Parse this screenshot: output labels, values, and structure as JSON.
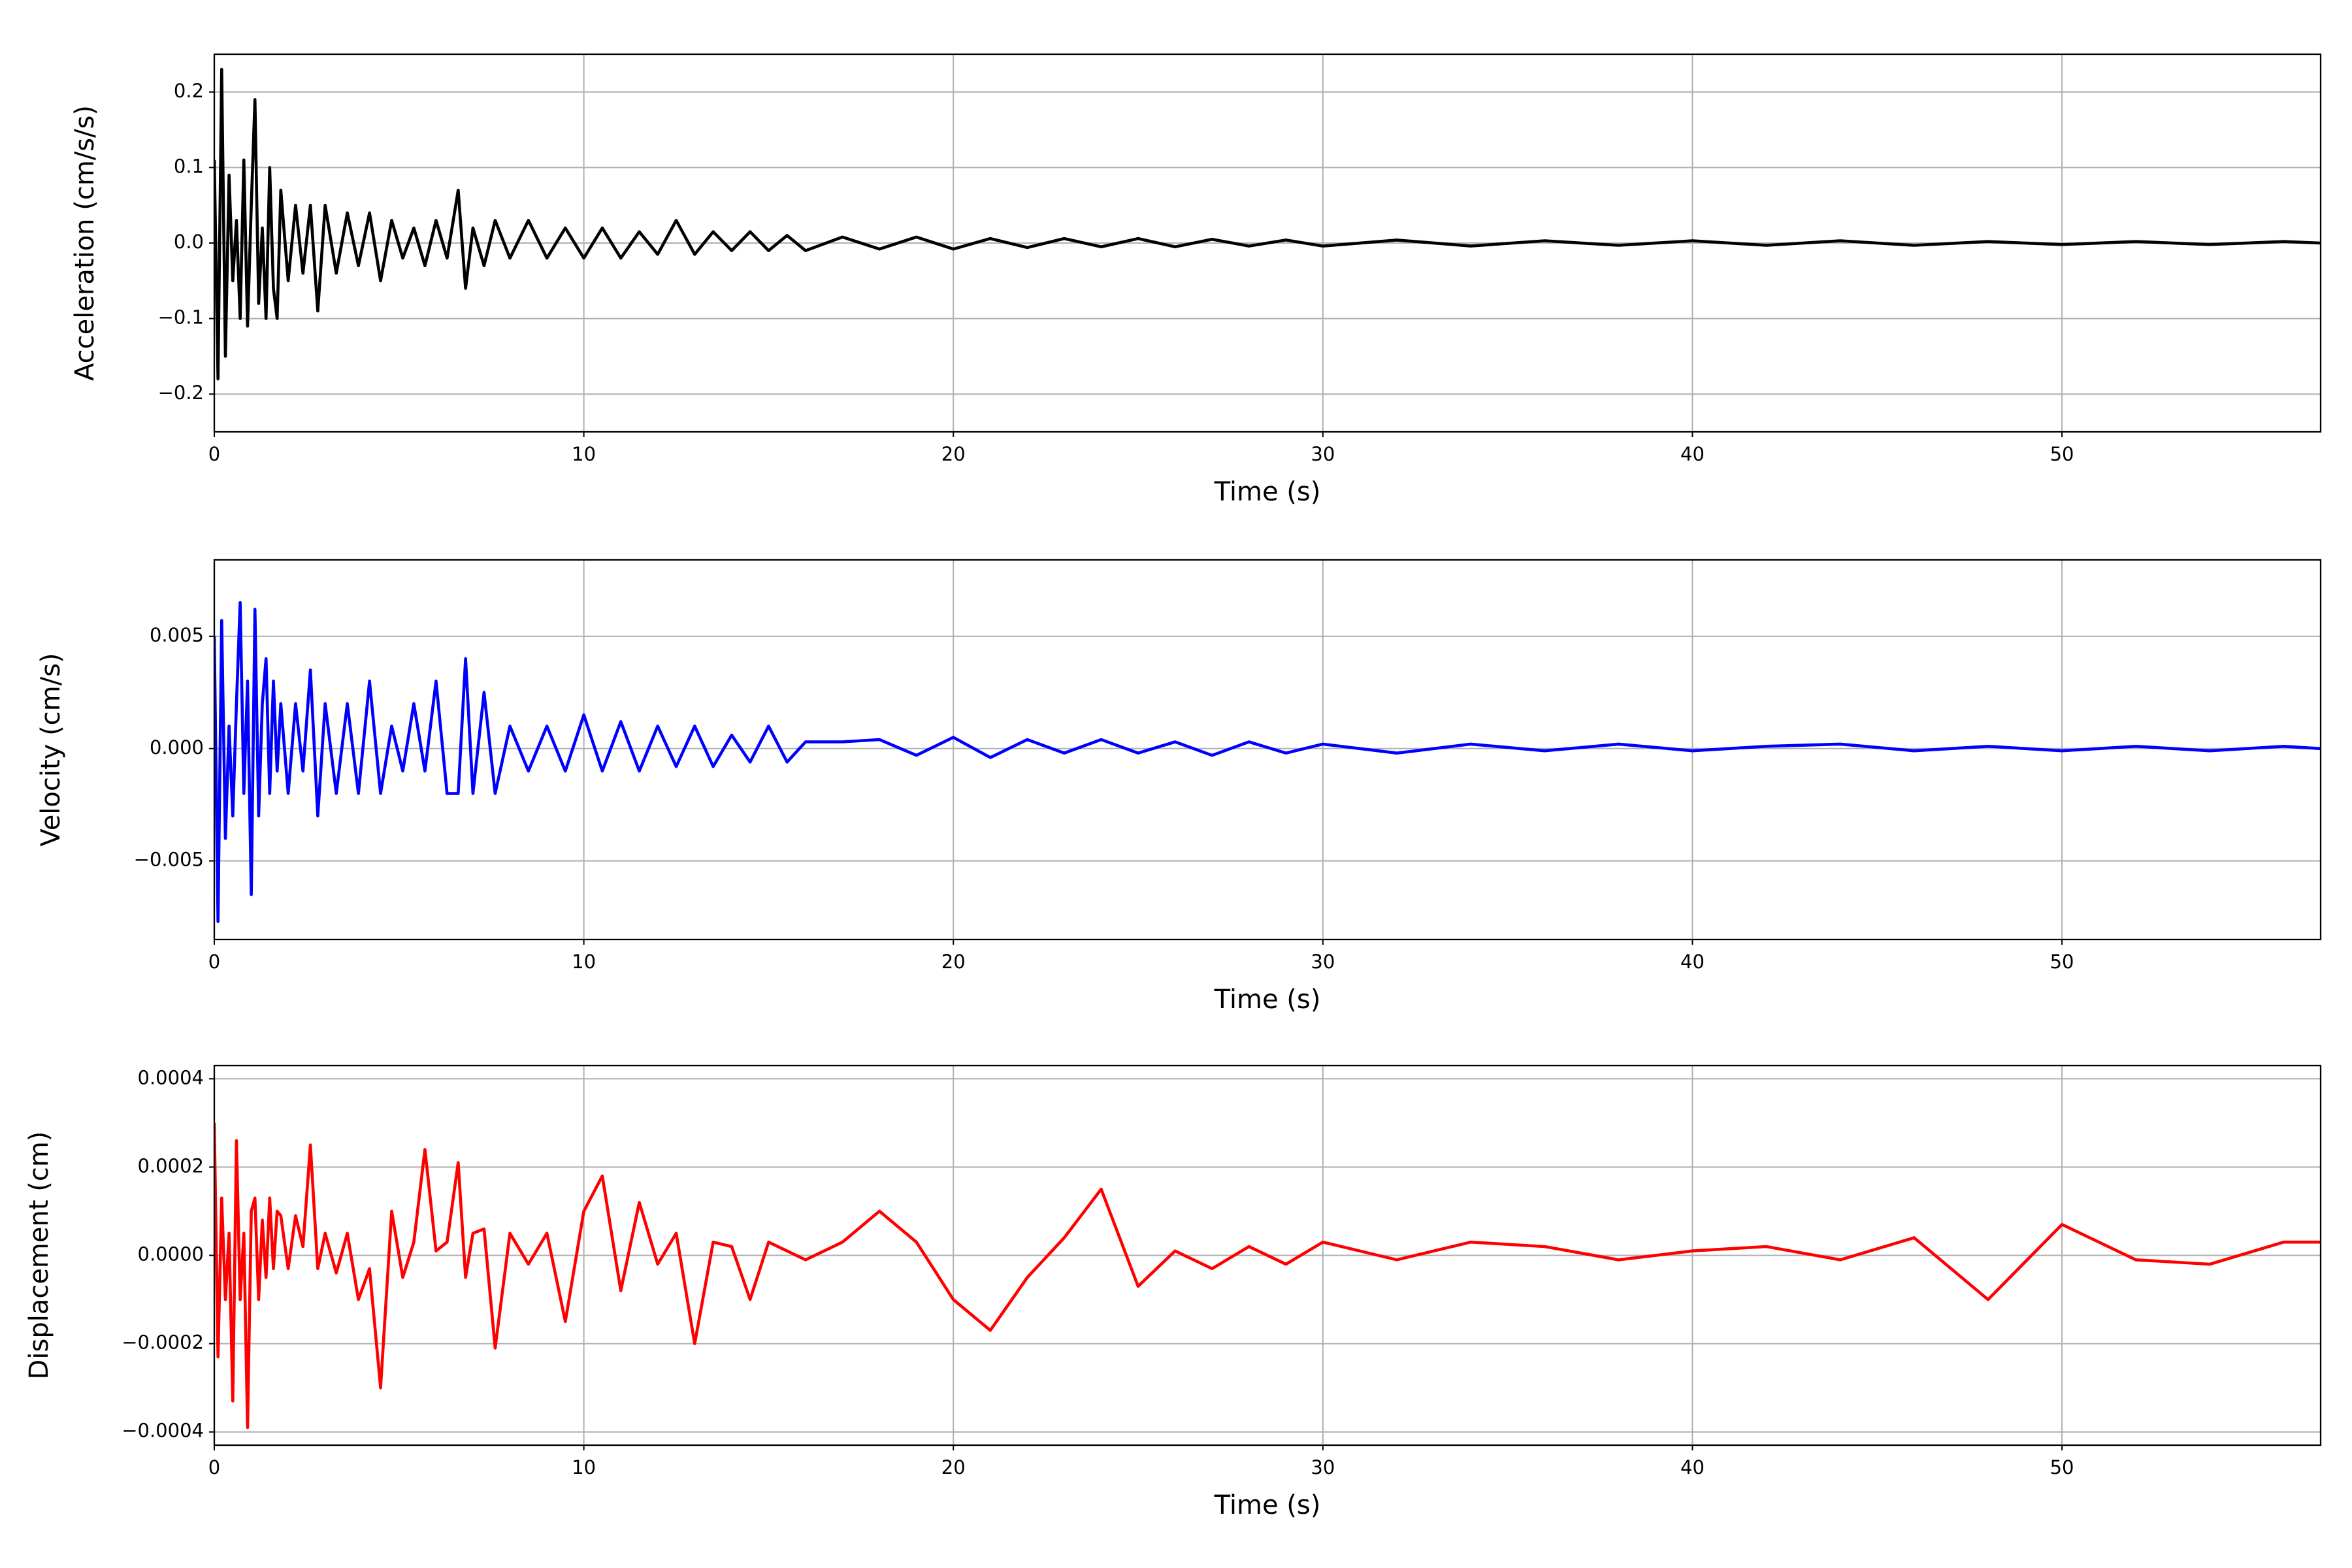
{
  "chart_data": [
    {
      "type": "line",
      "xlabel": "Time (s)",
      "ylabel": "Acceleration (cm/s/s)",
      "grid": true,
      "xlim": [
        0,
        57
      ],
      "xticks": [
        0,
        10,
        20,
        30,
        40,
        50
      ],
      "ylim": [
        -0.25,
        0.25
      ],
      "yticks": [
        {
          "value": -0.2,
          "label": "−0.2"
        },
        {
          "value": -0.1,
          "label": "−0.1"
        },
        {
          "value": 0,
          "label": "0.0"
        },
        0.1,
        0.2
      ],
      "x": [
        0,
        0.1,
        0.2,
        0.3,
        0.4,
        0.5,
        0.6,
        0.7,
        0.8,
        0.9,
        1.0,
        1.1,
        1.2,
        1.3,
        1.4,
        1.5,
        1.6,
        1.7,
        1.8,
        2.0,
        2.2,
        2.4,
        2.6,
        2.8,
        3.0,
        3.3,
        3.6,
        3.9,
        4.2,
        4.5,
        4.8,
        5.1,
        5.4,
        5.7,
        6.0,
        6.3,
        6.6,
        6.8,
        7.0,
        7.3,
        7.6,
        8.0,
        8.5,
        9,
        9.5,
        10,
        10.5,
        11,
        11.5,
        12,
        12.5,
        13,
        13.5,
        14,
        14.5,
        15,
        15.5,
        16,
        17,
        18,
        19,
        20,
        21,
        22,
        23,
        24,
        25,
        26,
        27,
        28,
        29,
        30,
        32,
        34,
        36,
        38,
        40,
        42,
        44,
        46,
        48,
        50,
        52,
        54,
        56,
        57
      ],
      "series": [
        {
          "color": "#000000",
          "values": [
            0.11,
            -0.18,
            0.23,
            -0.15,
            0.09,
            -0.05,
            0.03,
            -0.1,
            0.11,
            -0.11,
            0.05,
            0.19,
            -0.08,
            0.02,
            -0.1,
            0.1,
            -0.06,
            -0.1,
            0.07,
            -0.05,
            0.05,
            -0.04,
            0.05,
            -0.09,
            0.05,
            -0.04,
            0.04,
            -0.03,
            0.04,
            -0.05,
            0.03,
            -0.02,
            0.02,
            -0.03,
            0.03,
            -0.02,
            0.07,
            -0.06,
            0.02,
            -0.03,
            0.03,
            -0.02,
            0.03,
            -0.02,
            0.02,
            -0.02,
            0.02,
            -0.02,
            0.015,
            -0.015,
            0.03,
            -0.015,
            0.015,
            -0.01,
            0.015,
            -0.01,
            0.01,
            -0.01,
            0.008,
            -0.008,
            0.008,
            -0.008,
            0.006,
            -0.006,
            0.006,
            -0.005,
            0.006,
            -0.005,
            0.005,
            -0.004,
            0.004,
            -0.004,
            0.004,
            -0.004,
            0.003,
            -0.003,
            0.003,
            -0.003,
            0.003,
            -0.003,
            0.002,
            -0.002,
            0.002,
            -0.002,
            0.002,
            0
          ]
        }
      ]
    },
    {
      "type": "line",
      "xlabel": "Time (s)",
      "ylabel": "Velocity (cm/s)",
      "grid": true,
      "xlim": [
        0,
        57
      ],
      "xticks": [
        0,
        10,
        20,
        30,
        40,
        50
      ],
      "ylim": [
        -0.0085,
        0.0084
      ],
      "yticks": [
        {
          "value": -0.005,
          "label": "−0.005"
        },
        {
          "value": 0,
          "label": "0.000"
        },
        0.005
      ],
      "x": [
        0,
        0.1,
        0.2,
        0.3,
        0.4,
        0.5,
        0.6,
        0.7,
        0.8,
        0.9,
        1.0,
        1.1,
        1.2,
        1.3,
        1.4,
        1.5,
        1.6,
        1.7,
        1.8,
        2.0,
        2.2,
        2.4,
        2.6,
        2.8,
        3.0,
        3.3,
        3.6,
        3.9,
        4.2,
        4.5,
        4.8,
        5.1,
        5.4,
        5.7,
        6.0,
        6.3,
        6.6,
        6.8,
        7.0,
        7.3,
        7.6,
        8.0,
        8.5,
        9,
        9.5,
        10,
        10.5,
        11,
        11.5,
        12,
        12.5,
        13,
        13.5,
        14,
        14.5,
        15,
        15.5,
        16,
        17,
        18,
        19,
        20,
        21,
        22,
        23,
        24,
        25,
        26,
        27,
        28,
        29,
        30,
        32,
        34,
        36,
        38,
        40,
        42,
        44,
        46,
        48,
        50,
        52,
        54,
        56,
        57
      ],
      "series": [
        {
          "color": "#0000ff",
          "values": [
            0.005,
            -0.0077,
            0.0057,
            -0.004,
            0.001,
            -0.003,
            0.002,
            0.0065,
            -0.002,
            0.003,
            -0.0065,
            0.0062,
            -0.003,
            0.002,
            0.004,
            -0.002,
            0.003,
            -0.001,
            0.002,
            -0.002,
            0.002,
            -0.001,
            0.0035,
            -0.003,
            0.002,
            -0.002,
            0.002,
            -0.002,
            0.003,
            -0.002,
            0.001,
            -0.001,
            0.002,
            -0.001,
            0.003,
            -0.002,
            -0.002,
            0.004,
            -0.002,
            0.0025,
            -0.002,
            0.001,
            -0.001,
            0.001,
            -0.001,
            0.0015,
            -0.001,
            0.0012,
            -0.001,
            0.001,
            -0.0008,
            0.001,
            -0.0008,
            0.0006,
            -0.0006,
            0.001,
            -0.0006,
            0.0003,
            0.0003,
            0.0004,
            -0.0003,
            0.0005,
            -0.0004,
            0.0004,
            -0.0002,
            0.0004,
            -0.0002,
            0.0003,
            -0.0003,
            0.0003,
            -0.0002,
            0.0002,
            -0.0002,
            0.0002,
            -0.0001,
            0.0002,
            -0.0001,
            0.0001,
            0.0002,
            -0.0001,
            0.0001,
            -0.0001,
            0.0001,
            -0.0001,
            0.0001,
            0
          ]
        }
      ]
    },
    {
      "type": "line",
      "xlabel": "Time (s)",
      "ylabel": "Displacement (cm)",
      "grid": true,
      "xlim": [
        0,
        57
      ],
      "xticks": [
        0,
        10,
        20,
        30,
        40,
        50
      ],
      "ylim": [
        -0.00043,
        0.00043
      ],
      "yticks": [
        {
          "value": -0.0004,
          "label": "−0.0004"
        },
        {
          "value": -0.0002,
          "label": "−0.0002"
        },
        {
          "value": 0,
          "label": "0.0000"
        },
        0.0002,
        0.0004
      ],
      "x": [
        0,
        0.1,
        0.2,
        0.3,
        0.4,
        0.5,
        0.6,
        0.7,
        0.8,
        0.9,
        1.0,
        1.1,
        1.2,
        1.3,
        1.4,
        1.5,
        1.6,
        1.7,
        1.8,
        2.0,
        2.2,
        2.4,
        2.6,
        2.8,
        3.0,
        3.3,
        3.6,
        3.9,
        4.2,
        4.5,
        4.8,
        5.1,
        5.4,
        5.7,
        6.0,
        6.3,
        6.6,
        6.8,
        7.0,
        7.3,
        7.6,
        8.0,
        8.5,
        9,
        9.5,
        10,
        10.5,
        11,
        11.5,
        12,
        12.5,
        13,
        13.5,
        14,
        14.5,
        15,
        15.5,
        16,
        17,
        18,
        19,
        20,
        21,
        22,
        23,
        24,
        25,
        26,
        27,
        28,
        29,
        30,
        32,
        34,
        36,
        38,
        40,
        42,
        44,
        46,
        48,
        50,
        52,
        54,
        56,
        57
      ],
      "series": [
        {
          "color": "#ff0000",
          "values": [
            0.0003,
            -0.00023,
            0.00013,
            -0.0001,
            5e-05,
            -0.00033,
            0.00026,
            -0.0001,
            5e-05,
            -0.00039,
            0.0001,
            0.00013,
            -0.0001,
            8e-05,
            -5e-05,
            0.00013,
            -3e-05,
            0.0001,
            9e-05,
            -3e-05,
            9e-05,
            2e-05,
            0.00025,
            -3e-05,
            5e-05,
            -4e-05,
            5e-05,
            -0.0001,
            -3e-05,
            -0.0003,
            0.0001,
            -5e-05,
            3e-05,
            0.00024,
            1e-05,
            3e-05,
            0.00021,
            -5e-05,
            5e-05,
            6e-05,
            -0.00021,
            5e-05,
            -2e-05,
            5e-05,
            -0.00015,
            0.0001,
            0.00018,
            -8e-05,
            0.00012,
            -2e-05,
            5e-05,
            -0.0002,
            3e-05,
            2e-05,
            -0.0001,
            3e-05,
            1e-05,
            -1e-05,
            3e-05,
            0.0001,
            3e-05,
            -0.0001,
            -0.00017,
            -5e-05,
            4e-05,
            0.00015,
            -7e-05,
            1e-05,
            -3e-05,
            2e-05,
            -2e-05,
            3e-05,
            -1e-05,
            3e-05,
            2e-05,
            -1e-05,
            1e-05,
            2e-05,
            -1e-05,
            4e-05,
            -0.0001,
            7e-05,
            -1e-05,
            -2e-05,
            3e-05,
            3e-05
          ]
        }
      ]
    }
  ]
}
